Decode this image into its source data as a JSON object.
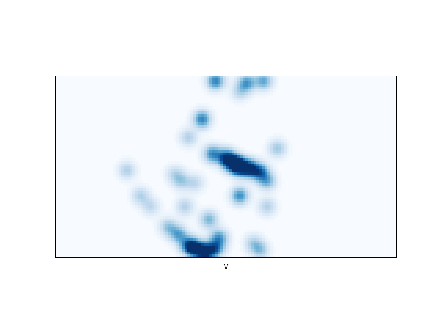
{
  "chart_data": {
    "type": "heatmap",
    "title": "",
    "xlabel": "v",
    "ylabel": "",
    "x_ticks": "none",
    "y_ticks": "none",
    "colormap": "Blues",
    "grid": false,
    "legend": "none",
    "hotspots": [
      {
        "x": 0.47,
        "y": 0.97,
        "intensity": 0.65
      },
      {
        "x": 0.56,
        "y": 0.96,
        "intensity": 0.55
      },
      {
        "x": 0.61,
        "y": 0.97,
        "intensity": 0.5
      },
      {
        "x": 0.54,
        "y": 0.91,
        "intensity": 0.25
      },
      {
        "x": 0.43,
        "y": 0.76,
        "intensity": 0.65
      },
      {
        "x": 0.39,
        "y": 0.66,
        "intensity": 0.3
      },
      {
        "x": 0.46,
        "y": 0.57,
        "intensity": 0.6
      },
      {
        "x": 0.5,
        "y": 0.55,
        "intensity": 0.75
      },
      {
        "x": 0.52,
        "y": 0.52,
        "intensity": 0.85
      },
      {
        "x": 0.54,
        "y": 0.5,
        "intensity": 1.0
      },
      {
        "x": 0.57,
        "y": 0.49,
        "intensity": 0.8
      },
      {
        "x": 0.6,
        "y": 0.47,
        "intensity": 0.65
      },
      {
        "x": 0.62,
        "y": 0.42,
        "intensity": 0.45
      },
      {
        "x": 0.54,
        "y": 0.34,
        "intensity": 0.6
      },
      {
        "x": 0.65,
        "y": 0.6,
        "intensity": 0.35
      },
      {
        "x": 0.21,
        "y": 0.48,
        "intensity": 0.3
      },
      {
        "x": 0.35,
        "y": 0.46,
        "intensity": 0.25
      },
      {
        "x": 0.37,
        "y": 0.42,
        "intensity": 0.3
      },
      {
        "x": 0.41,
        "y": 0.41,
        "intensity": 0.25
      },
      {
        "x": 0.25,
        "y": 0.34,
        "intensity": 0.3
      },
      {
        "x": 0.28,
        "y": 0.28,
        "intensity": 0.25
      },
      {
        "x": 0.38,
        "y": 0.28,
        "intensity": 0.3
      },
      {
        "x": 0.62,
        "y": 0.28,
        "intensity": 0.3
      },
      {
        "x": 0.45,
        "y": 0.21,
        "intensity": 0.45
      },
      {
        "x": 0.48,
        "y": 0.11,
        "intensity": 0.55
      },
      {
        "x": 0.33,
        "y": 0.17,
        "intensity": 0.35
      },
      {
        "x": 0.36,
        "y": 0.13,
        "intensity": 0.5
      },
      {
        "x": 0.41,
        "y": 0.05,
        "intensity": 0.85
      },
      {
        "x": 0.44,
        "y": 0.03,
        "intensity": 0.95
      },
      {
        "x": 0.39,
        "y": 0.07,
        "intensity": 0.65
      },
      {
        "x": 0.47,
        "y": 0.05,
        "intensity": 0.6
      },
      {
        "x": 0.58,
        "y": 0.08,
        "intensity": 0.3
      },
      {
        "x": 0.6,
        "y": 0.04,
        "intensity": 0.35
      }
    ]
  }
}
